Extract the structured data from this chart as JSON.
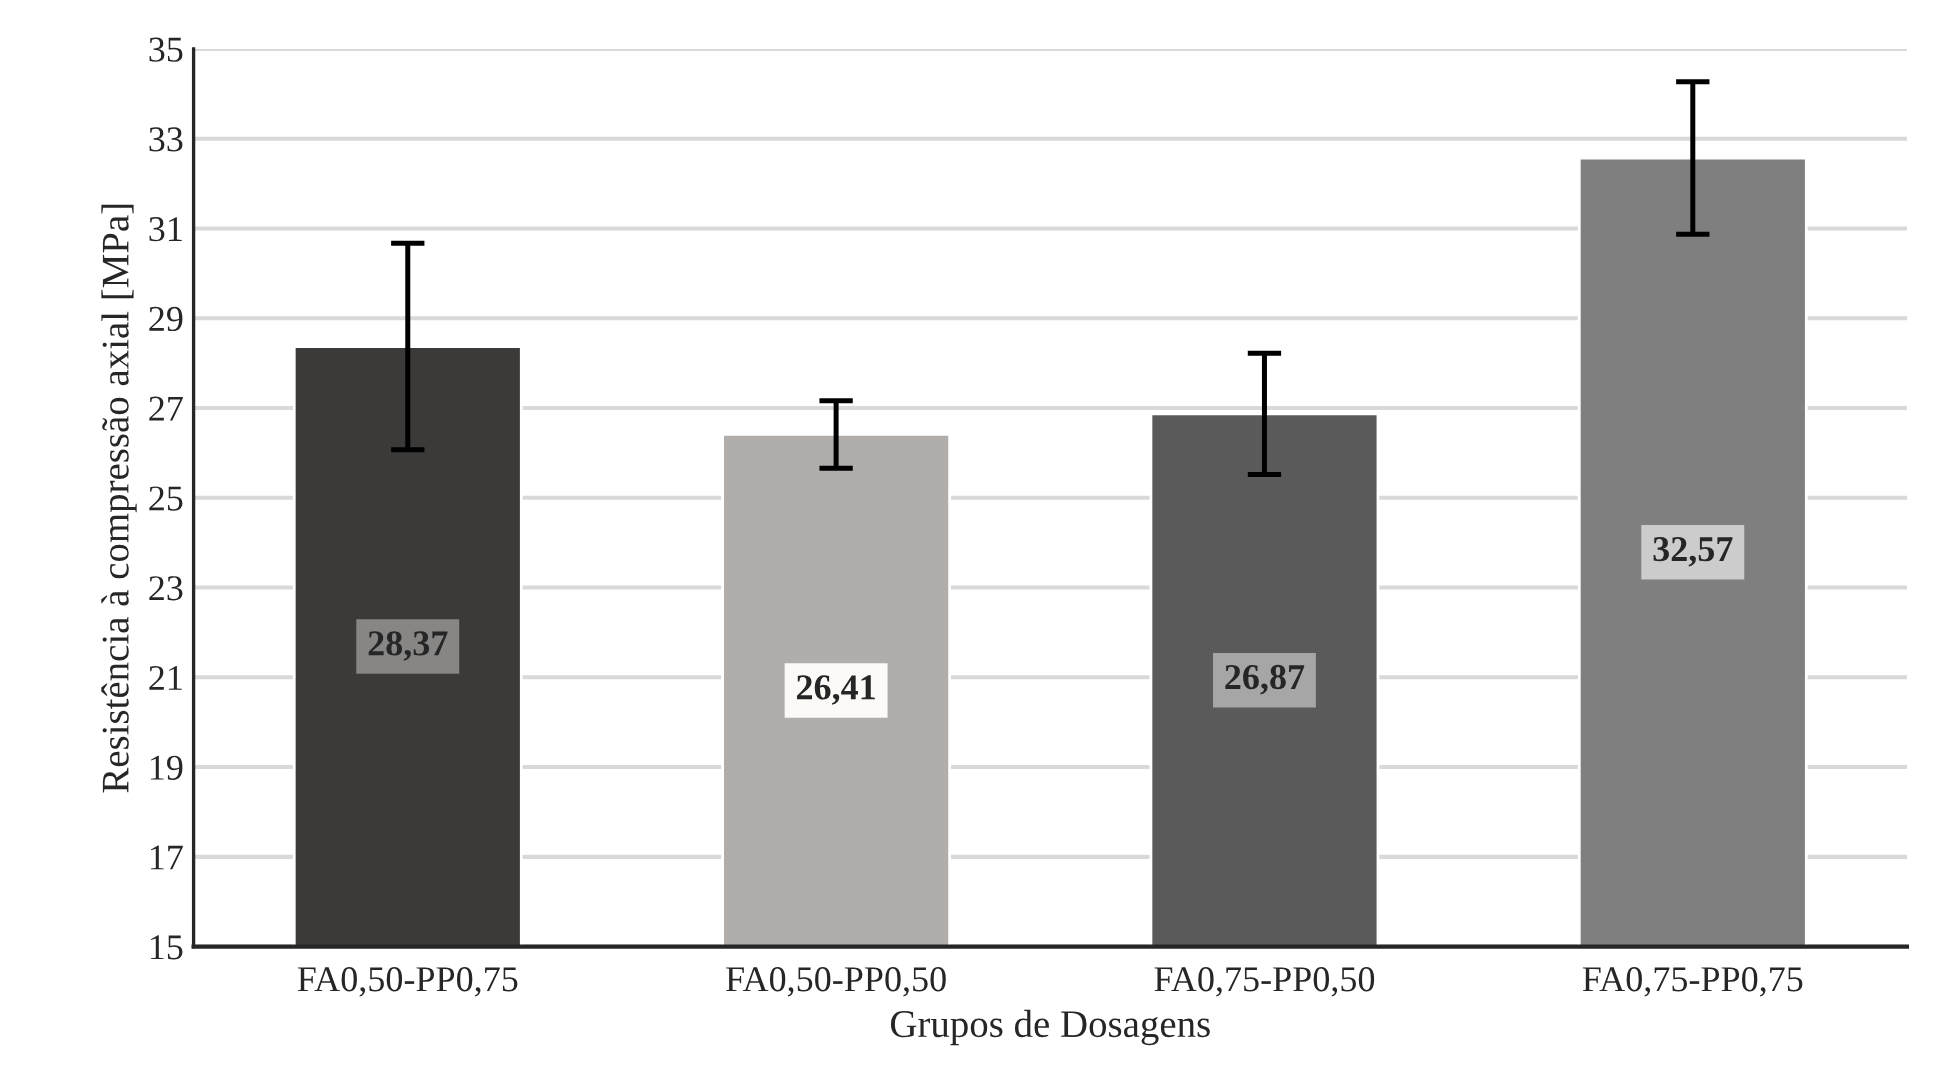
{
  "chart_data": {
    "type": "bar",
    "xlabel": "Grupos de Dosagens",
    "ylabel": "Resistência à compressão axial [MPa]",
    "categories": [
      "FA0,50-PP0,75",
      "FA0,50-PP0,50",
      "FA0,75-PP0,50",
      "FA0,75-PP0,75"
    ],
    "values": [
      28.37,
      26.41,
      26.87,
      32.57
    ],
    "errors": [
      2.3,
      0.75,
      1.35,
      1.7
    ],
    "colors": [
      "#3b3a38",
      "#b0adab",
      "#5a5a5a",
      "#7f7f7f"
    ],
    "value_labels": [
      "28,37",
      "26,41",
      "26,87",
      "32,57"
    ],
    "ylim": [
      15,
      35
    ],
    "yticks": [
      15,
      17,
      19,
      21,
      23,
      25,
      27,
      29,
      31,
      33,
      35
    ],
    "grid": "y"
  }
}
